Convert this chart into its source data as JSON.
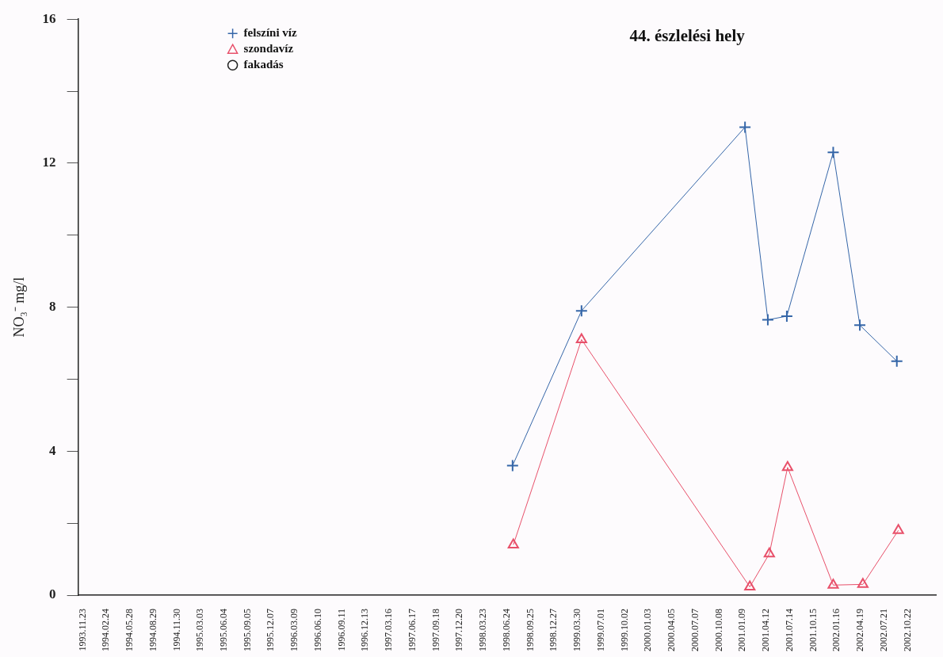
{
  "chart_data": {
    "type": "line",
    "title": "44. észlelési hely",
    "ylabel": "NO₃⁻ mg/l",
    "xlim": [
      "1993-11-05",
      "2003-02-10"
    ],
    "xticks": [
      {
        "value": "1993-11-23",
        "label": "1993.11.23"
      },
      {
        "value": "1994-02-24",
        "label": "1994.02.24"
      },
      {
        "value": "1994-05-28",
        "label": "1994.05.28"
      },
      {
        "value": "1994-08-29",
        "label": "1994.08.29"
      },
      {
        "value": "1994-11-30",
        "label": "1994.11.30"
      },
      {
        "value": "1995-03-03",
        "label": "1995.03.03"
      },
      {
        "value": "1995-06-04",
        "label": "1995.06.04"
      },
      {
        "value": "1995-09-05",
        "label": "1995.09.05"
      },
      {
        "value": "1995-12-07",
        "label": "1995.12.07"
      },
      {
        "value": "1996-03-09",
        "label": "1996.03.09"
      },
      {
        "value": "1996-06-10",
        "label": "1996.06.10"
      },
      {
        "value": "1996-09-11",
        "label": "1996.09.11"
      },
      {
        "value": "1996-12-13",
        "label": "1996.12.13"
      },
      {
        "value": "1997-03-16",
        "label": "1997.03.16"
      },
      {
        "value": "1997-06-17",
        "label": "1997.06.17"
      },
      {
        "value": "1997-09-18",
        "label": "1997.09.18"
      },
      {
        "value": "1997-12-20",
        "label": "1997.12.20"
      },
      {
        "value": "1998-03-23",
        "label": "1998.03.23"
      },
      {
        "value": "1998-06-24",
        "label": "1998.06.24"
      },
      {
        "value": "1998-09-25",
        "label": "1998.09.25"
      },
      {
        "value": "1998-12-27",
        "label": "1998.12.27"
      },
      {
        "value": "1999-03-30",
        "label": "1999.03.30"
      },
      {
        "value": "1999-07-01",
        "label": "1999.07.01"
      },
      {
        "value": "1999-10-02",
        "label": "1999.10.02"
      },
      {
        "value": "2000-01-03",
        "label": "2000.01.03"
      },
      {
        "value": "2000-04-05",
        "label": "2000.04.05"
      },
      {
        "value": "2000-07-07",
        "label": "2000.07.07"
      },
      {
        "value": "2000-10-08",
        "label": "2000.10.08"
      },
      {
        "value": "2001-01-09",
        "label": "2001.01.09"
      },
      {
        "value": "2001-04-12",
        "label": "2001.04.12"
      },
      {
        "value": "2001-07-14",
        "label": "2001.07.14"
      },
      {
        "value": "2001-10-15",
        "label": "2001.10.15"
      },
      {
        "value": "2002-01-16",
        "label": "2002.01.16"
      },
      {
        "value": "2002-04-19",
        "label": "2002.04.19"
      },
      {
        "value": "2002-07-21",
        "label": "2002.07.21"
      },
      {
        "value": "2002-10-22",
        "label": "2002.10.22"
      }
    ],
    "ylim": [
      0,
      16
    ],
    "yticks": [
      0,
      {
        "value": 2,
        "label": null
      },
      4,
      {
        "value": 6,
        "label": null
      },
      8,
      {
        "value": 10,
        "label": null
      },
      12,
      {
        "value": 14,
        "label": null
      },
      16
    ],
    "legend": "top left",
    "grid": false,
    "line_style": "solid",
    "series": [
      {
        "name": "felszíni víz",
        "color": "#3566a8",
        "marker": "cross",
        "x": [
          "1998-07-16",
          "1999-04-14",
          "2001-01-18",
          "2001-04-18",
          "2001-07-02",
          "2002-01-01",
          "2002-04-16",
          "2002-09-09"
        ],
        "values": [
          3.6,
          7.9,
          13.0,
          7.65,
          7.75,
          12.3,
          7.5,
          6.5
        ]
      },
      {
        "name": "szondavíz",
        "color": "#e8506a",
        "marker": "triangle",
        "x": [
          "1998-07-19",
          "1999-04-14",
          "2001-02-06",
          "2001-04-24",
          "2001-07-05",
          "2002-01-01",
          "2002-04-28",
          "2002-09-15"
        ],
        "values": [
          1.4,
          7.1,
          0.23,
          1.15,
          3.55,
          0.28,
          0.3,
          1.8
        ]
      },
      {
        "name": "fakadás",
        "color": "#222222",
        "marker": "circle"
      }
    ]
  }
}
